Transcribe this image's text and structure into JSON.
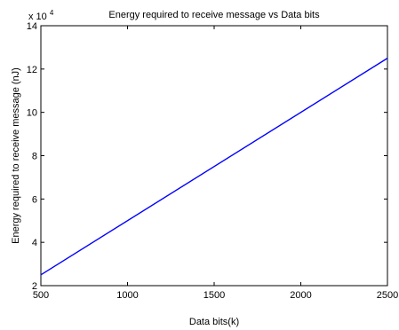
{
  "chart_data": {
    "type": "line",
    "title": "Energy required to receive message vs Data bits",
    "xlabel": "Data bits(k)",
    "ylabel": "Energy required to receive message (nJ)",
    "xlim": [
      500,
      2500
    ],
    "ylim": [
      2,
      14
    ],
    "xticks": [
      "500",
      "1000",
      "1500",
      "2000",
      "2500"
    ],
    "yticks": [
      "2",
      "4",
      "6",
      "8",
      "10",
      "12",
      "14"
    ],
    "y_multiplier": {
      "base": "x 10",
      "exponent": "4"
    },
    "grid": false,
    "series": [
      {
        "x": [
          500,
          2500
        ],
        "y": [
          2.5,
          12.5
        ],
        "color": "#0000ff"
      }
    ]
  }
}
